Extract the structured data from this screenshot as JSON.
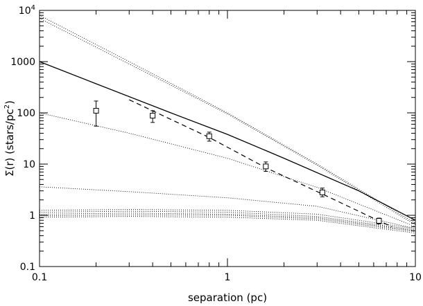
{
  "chart_data": {
    "type": "line",
    "xlabel": "separation (pc)",
    "ylabel_parts": {
      "main": "Σ(r) (stars/pc",
      "sup": "2",
      "close": ")"
    },
    "xscale": "log",
    "yscale": "log",
    "xlim": [
      0.1,
      10
    ],
    "ylim": [
      0.1,
      10000
    ],
    "x_ticks": [
      {
        "value": 0.1,
        "label": "0.1"
      },
      {
        "value": 1,
        "label": "1"
      },
      {
        "value": 10,
        "label": "10"
      }
    ],
    "y_ticks": [
      {
        "value": 0.1,
        "label": "0.1"
      },
      {
        "value": 1,
        "label": "1"
      },
      {
        "value": 10,
        "label": "10"
      },
      {
        "value": 100,
        "label": "100"
      },
      {
        "value": 1000,
        "label": "1000"
      },
      {
        "value": 10000,
        "label": "10",
        "sup": "4"
      }
    ],
    "grid": false,
    "series": [
      {
        "style": "solid",
        "x": [
          0.1,
          0.2,
          0.5,
          1,
          2,
          5,
          10
        ],
        "y": [
          1000,
          370,
          100,
          38,
          13,
          3.0,
          0.8
        ]
      },
      {
        "style": "dashed",
        "x": [
          0.3,
          0.8,
          1.6,
          3.2,
          6.4,
          7.5
        ],
        "y": [
          180,
          33,
          8.5,
          2.6,
          0.78,
          0.6
        ]
      },
      {
        "style": "dotted",
        "x": [
          0.1,
          0.3,
          1,
          3,
          10
        ],
        "y": [
          8000,
          1000,
          100,
          10,
          0.7
        ]
      },
      {
        "style": "dotted",
        "x": [
          0.1,
          0.3,
          1,
          3,
          10
        ],
        "y": [
          7000,
          900,
          95,
          9.5,
          0.65
        ]
      },
      {
        "style": "dotted",
        "x": [
          0.1,
          0.3,
          1,
          3,
          10
        ],
        "y": [
          100,
          40,
          13,
          3.5,
          0.6
        ]
      },
      {
        "style": "dotted",
        "x": [
          0.1,
          0.3,
          1,
          3,
          10
        ],
        "y": [
          3.6,
          2.9,
          2.2,
          1.5,
          0.55
        ]
      },
      {
        "style": "dotted",
        "x": [
          0.1,
          0.3,
          1,
          3,
          10
        ],
        "y": [
          1.25,
          1.3,
          1.25,
          1.05,
          0.55
        ]
      },
      {
        "style": "dotted",
        "x": [
          0.1,
          0.3,
          1,
          3,
          10
        ],
        "y": [
          1.15,
          1.2,
          1.15,
          0.95,
          0.52
        ]
      },
      {
        "style": "dotted",
        "x": [
          0.1,
          0.3,
          1,
          3,
          10
        ],
        "y": [
          1.05,
          1.1,
          1.05,
          0.9,
          0.5
        ]
      },
      {
        "style": "dotted",
        "x": [
          0.1,
          0.3,
          1,
          3,
          10
        ],
        "y": [
          0.98,
          1.02,
          1.0,
          0.85,
          0.48
        ]
      },
      {
        "style": "dotted",
        "x": [
          0.1,
          0.3,
          1,
          3,
          10
        ],
        "y": [
          0.92,
          0.95,
          0.92,
          0.8,
          0.45
        ]
      }
    ],
    "points": [
      {
        "x": 0.2,
        "y": 110,
        "err_low": 55,
        "err_high": 170
      },
      {
        "x": 0.4,
        "y": 88,
        "err_low": 65,
        "err_high": 110
      },
      {
        "x": 0.8,
        "y": 35,
        "err_low": 28,
        "err_high": 42
      },
      {
        "x": 1.6,
        "y": 9.0,
        "err_low": 7.2,
        "err_high": 11
      },
      {
        "x": 3.2,
        "y": 2.8,
        "err_low": 2.3,
        "err_high": 3.4
      },
      {
        "x": 6.4,
        "y": 0.78,
        "err_low": 0.68,
        "err_high": 0.88
      }
    ]
  }
}
